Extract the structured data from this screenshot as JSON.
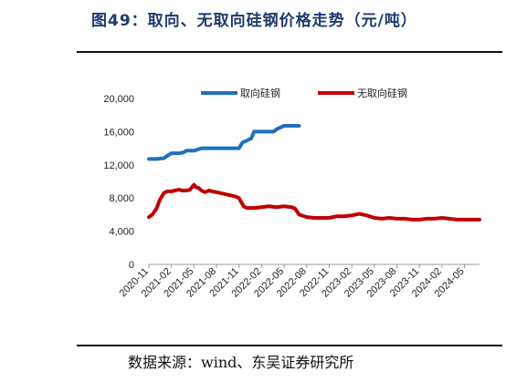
{
  "title": "图49：取向、无取向硅钢价格走势（元/吨）",
  "source": "数据来源：wind、东吴证券研究所",
  "colors": {
    "series_a": "#1f6fbf",
    "series_b": "#c00000",
    "title": "#1f3a6e"
  },
  "chart_data": {
    "type": "line",
    "title": "",
    "xlabel": "",
    "ylabel": "",
    "legend_position": "top",
    "grid": false,
    "ylim": [
      0,
      20000
    ],
    "xlim": [
      "2020-11",
      "2024-07"
    ],
    "y_ticks": [
      0,
      4000,
      8000,
      12000,
      16000,
      20000
    ],
    "y_tick_labels": [
      "0",
      "4,000",
      "8,000",
      "12,000",
      "16,000",
      "20,000"
    ],
    "x_tick_labels": [
      "2020-11",
      "2021-02",
      "2021-05",
      "2021-08",
      "2021-11",
      "2022-02",
      "2022-05",
      "2022-08",
      "2022-11",
      "2023-02",
      "2023-05",
      "2023-08",
      "2023-11",
      "2024-02",
      "2024-05"
    ],
    "series": [
      {
        "name": "取向硅钢",
        "color": "#1f6fbf",
        "x": [
          "2020-11",
          "2020-12",
          "2021-01",
          "2021-01-20",
          "2021-02",
          "2021-03",
          "2021-03-20",
          "2021-04",
          "2021-04-20",
          "2021-05",
          "2021-06",
          "2021-07",
          "2021-08",
          "2021-09",
          "2021-10",
          "2021-11",
          "2021-11-15",
          "2021-12",
          "2021-12-20",
          "2022-01",
          "2022-02",
          "2022-03",
          "2022-03-20",
          "2022-04",
          "2022-05",
          "2022-06",
          "2022-07"
        ],
        "values": [
          12700,
          12700,
          12800,
          13200,
          13400,
          13400,
          13500,
          13700,
          13700,
          13700,
          14000,
          14000,
          14000,
          14000,
          14000,
          14000,
          14700,
          14900,
          15200,
          16000,
          16000,
          16000,
          16000,
          16300,
          16700,
          16700,
          16700
        ]
      },
      {
        "name": "无取向硅钢",
        "color": "#c00000",
        "x": [
          "2020-11",
          "2020-11-15",
          "2020-12",
          "2020-12-15",
          "2021-01",
          "2021-01-15",
          "2021-02",
          "2021-02-15",
          "2021-03",
          "2021-03-15",
          "2021-04",
          "2021-04-15",
          "2021-05",
          "2021-05-10",
          "2021-05-20",
          "2021-06",
          "2021-06-15",
          "2021-07",
          "2021-07-15",
          "2021-08",
          "2021-08-15",
          "2021-09",
          "2021-09-15",
          "2021-10",
          "2021-10-15",
          "2021-11",
          "2021-11-10",
          "2021-11-20",
          "2021-12",
          "2022-01",
          "2022-02",
          "2022-03",
          "2022-04",
          "2022-05",
          "2022-06",
          "2022-06-15",
          "2022-07",
          "2022-08",
          "2022-09",
          "2022-10",
          "2022-11",
          "2022-12",
          "2023-01",
          "2023-02",
          "2023-03",
          "2023-04",
          "2023-05",
          "2023-06",
          "2023-07",
          "2023-08",
          "2023-09",
          "2023-10",
          "2023-11",
          "2023-12",
          "2024-01",
          "2024-02",
          "2024-03",
          "2024-04",
          "2024-05",
          "2024-06",
          "2024-07"
        ],
        "values": [
          5700,
          6000,
          6700,
          7800,
          8600,
          8800,
          8800,
          8900,
          9000,
          8900,
          8900,
          9000,
          9600,
          9300,
          9200,
          8900,
          8700,
          8900,
          8800,
          8700,
          8600,
          8500,
          8400,
          8300,
          8200,
          8000,
          7500,
          7000,
          6800,
          6800,
          6900,
          7000,
          6900,
          7000,
          6900,
          6700,
          6000,
          5700,
          5600,
          5600,
          5600,
          5800,
          5800,
          5900,
          6100,
          5900,
          5600,
          5500,
          5600,
          5500,
          5500,
          5400,
          5400,
          5500,
          5500,
          5600,
          5500,
          5400,
          5400,
          5400,
          5400
        ]
      }
    ]
  }
}
